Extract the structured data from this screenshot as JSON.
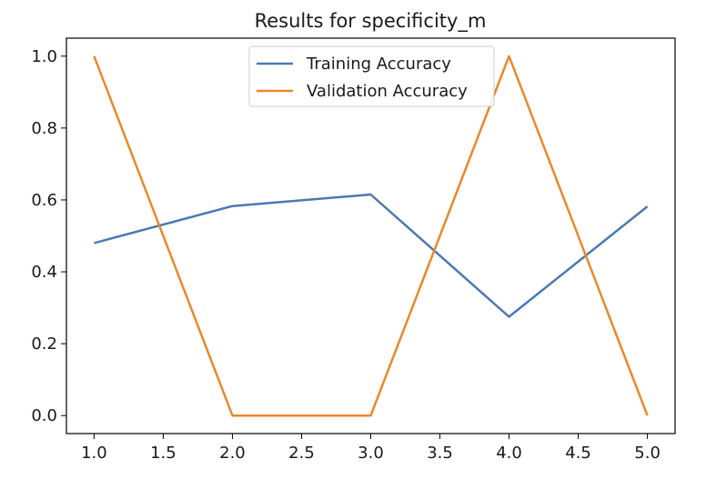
{
  "chart_data": {
    "type": "line",
    "title": "Results for specificity_m",
    "xlabel": "",
    "ylabel": "",
    "xlim": [
      0.8,
      5.2
    ],
    "ylim": [
      -0.05,
      1.05
    ],
    "xticks": [
      "1.0",
      "1.5",
      "2.0",
      "2.5",
      "3.0",
      "3.5",
      "4.0",
      "4.5",
      "5.0"
    ],
    "yticks": [
      "0.0",
      "0.2",
      "0.4",
      "0.6",
      "0.8",
      "1.0"
    ],
    "grid": false,
    "legend_position": "top-center",
    "x": [
      1,
      2,
      3,
      4,
      5
    ],
    "series": [
      {
        "name": "Training Accuracy",
        "color": "#4c78b5",
        "values": [
          0.48,
          0.583,
          0.615,
          0.275,
          0.582
        ]
      },
      {
        "name": "Validation Accuracy",
        "color": "#e8892b",
        "values": [
          1.0,
          0.0,
          0.0,
          1.0,
          0.0
        ]
      }
    ]
  }
}
